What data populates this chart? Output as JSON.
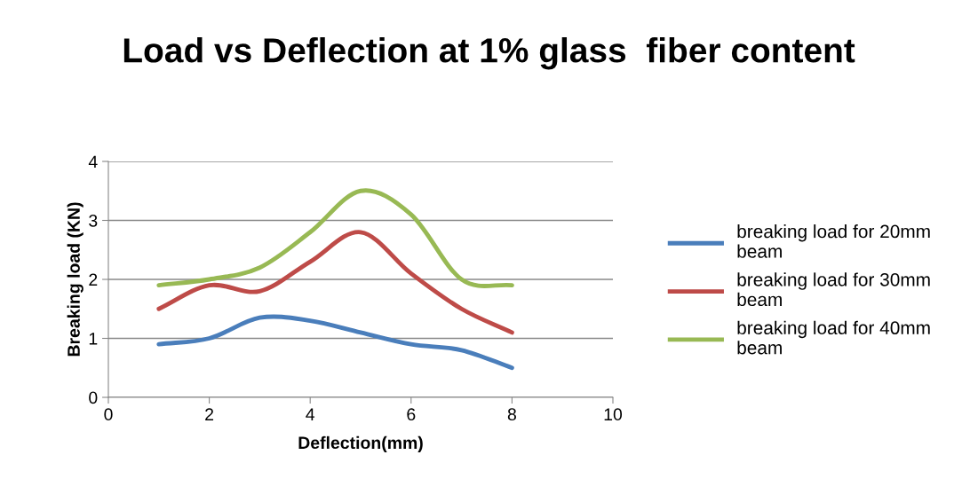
{
  "chart_data": {
    "type": "line",
    "title": "Load vs Deflection at 1% glass  fiber content",
    "xlabel": "Deflection(mm)",
    "ylabel": "Breaking load (KN)",
    "x": [
      1,
      2,
      3,
      4,
      5,
      6,
      7,
      8
    ],
    "series": [
      {
        "name": "breaking load for 20mm beam",
        "color": "#4a7ebb",
        "values": [
          0.9,
          1.0,
          1.35,
          1.3,
          1.1,
          0.9,
          0.8,
          0.5
        ]
      },
      {
        "name": "breaking load for 30mm beam",
        "color": "#be4b48",
        "values": [
          1.5,
          1.9,
          1.8,
          2.3,
          2.8,
          2.1,
          1.5,
          1.1
        ]
      },
      {
        "name": "breaking load for 40mm beam",
        "color": "#98b954",
        "values": [
          1.9,
          2.0,
          2.2,
          2.8,
          3.5,
          3.1,
          2.0,
          1.9
        ]
      }
    ],
    "xlim": [
      0,
      10
    ],
    "xticks": [
      0,
      2,
      4,
      6,
      8,
      10
    ],
    "ylim": [
      0,
      4
    ],
    "yticks": [
      0,
      1,
      2,
      3,
      4
    ],
    "grid": "y",
    "legend": "right",
    "marker": "none",
    "line_style": "solid"
  }
}
